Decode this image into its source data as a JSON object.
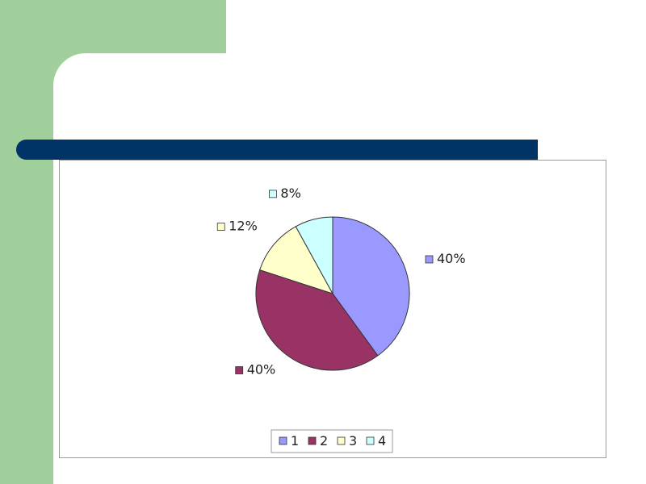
{
  "chart_data": {
    "type": "pie",
    "categories": [
      "1",
      "2",
      "3",
      "4"
    ],
    "values": [
      40,
      40,
      12,
      8
    ],
    "data_labels": [
      "40%",
      "40%",
      "12%",
      "8%"
    ],
    "colors": [
      "#9999ff",
      "#993366",
      "#ffffcc",
      "#ccffff"
    ],
    "legend": {
      "entries": [
        "1",
        "2",
        "3",
        "4"
      ],
      "position": "bottom"
    },
    "start_angle": "top, clockwise"
  }
}
